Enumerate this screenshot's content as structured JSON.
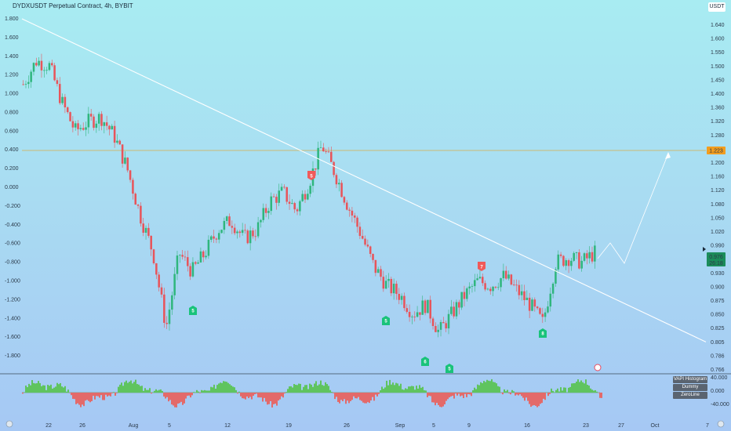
{
  "header": {
    "symbol": "DYDXUSDT Perpetual Contract, 4h, BYBIT",
    "currency": "USDT"
  },
  "chart_data": {
    "type": "candlestick",
    "left_axis": {
      "ticks": [
        "1.800",
        "1.600",
        "1.400",
        "1.200",
        "1.000",
        "0.800",
        "0.600",
        "0.400",
        "0.200",
        "0.000",
        "-0.200",
        "-0.400",
        "-0.600",
        "-0.800",
        "-1.000",
        "-1.200",
        "-1.400",
        "-1.600",
        "-1.800"
      ],
      "range": [
        -1.9,
        1.85
      ]
    },
    "right_axis": {
      "ticks": [
        "1.640",
        "1.600",
        "1.550",
        "1.500",
        "1.450",
        "1.400",
        "1.360",
        "1.320",
        "1.280",
        "1.240",
        "1.200",
        "1.160",
        "1.120",
        "1.080",
        "1.050",
        "1.020",
        "0.990",
        "0.960",
        "0.930",
        "0.900",
        "0.875",
        "0.850",
        "0.825",
        "0.805",
        "0.786",
        "0.766"
      ]
    },
    "x_axis": {
      "ticks": [
        "22",
        "26",
        "Aug",
        "5",
        "12",
        "19",
        "26",
        "Sep",
        "5",
        "9",
        "16",
        "23",
        "27",
        "Oct",
        "7"
      ]
    },
    "price_path": [
      1.1,
      1.35,
      1.3,
      0.9,
      0.6,
      0.7,
      0.75,
      0.55,
      0.2,
      -0.3,
      -0.7,
      -1.5,
      -0.7,
      -0.9,
      -0.7,
      -0.45,
      -0.35,
      -0.55,
      -0.45,
      -0.15,
      -0.05,
      -0.25,
      0.05,
      0.45,
      0.15,
      -0.2,
      -0.5,
      -0.85,
      -1.05,
      -1.15,
      -1.35,
      -1.25,
      -1.55,
      -1.35,
      -1.15,
      -1.0,
      -1.05,
      -0.95,
      -1.1,
      -1.25,
      -1.45,
      -0.8,
      -0.75,
      -0.8,
      -0.7
    ],
    "last_price": "0.976",
    "countdown": "26:18",
    "horizontal_level": "1.223",
    "trendline": {
      "from": [
        0,
        1.8
      ],
      "to": [
        1.0,
        -1.15
      ]
    },
    "signals": [
      {
        "text": "5",
        "type": "sell",
        "at": 0.42
      },
      {
        "text": "5",
        "type": "buy",
        "at": 0.26
      },
      {
        "text": "5",
        "type": "buy",
        "at": 0.53
      },
      {
        "text": "6",
        "type": "buy",
        "at": 0.58
      },
      {
        "text": "5",
        "type": "buy",
        "at": 0.61
      },
      {
        "text": "7",
        "type": "sell",
        "at": 0.66
      },
      {
        "text": "8",
        "type": "buy",
        "at": 0.74
      }
    ],
    "indicator": {
      "name": "VAPI Histogram",
      "legend": [
        "VAPI Histogram",
        "Dummy",
        "ZeroLine"
      ],
      "ticks": [
        "40.000",
        "0.000",
        "-40.000"
      ]
    },
    "colors": {
      "up": "#2fb67d",
      "down": "#e8545a",
      "trendline": "#ffffff",
      "level": "#e3a020",
      "hist_up": "#5fc45f",
      "hist_down": "#e36a6a"
    }
  }
}
